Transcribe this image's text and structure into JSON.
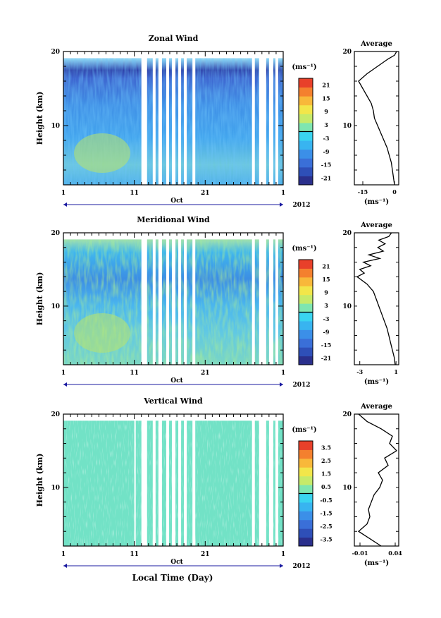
{
  "figure": {
    "bottom_xlabel": "Local Time (Day)"
  },
  "colormap": [
    "#2a2f8c",
    "#2e4fb8",
    "#3a6fd8",
    "#3b8fe8",
    "#38b4f0",
    "#3ad4f0",
    "#7ee6b0",
    "#c6ea6a",
    "#f2e64a",
    "#f8b83a",
    "#f4802e",
    "#e8402a"
  ],
  "chart_data": [
    {
      "type": "heatmap",
      "title": "Zonal Wind",
      "ylabel": "Height (km)",
      "yticks": [
        "10",
        "20"
      ],
      "ylim": [
        2,
        20
      ],
      "xticks": [
        "1",
        "11",
        "21",
        "1"
      ],
      "xlim": [
        1,
        32
      ],
      "month_label": "Oct",
      "year_label": "2012",
      "colorbar": {
        "unit": "(ms⁻¹)",
        "ticks": [
          "21",
          "15",
          "9",
          "3",
          "-3",
          "-9",
          "-15",
          "-21"
        ],
        "range": [
          -24,
          24
        ]
      },
      "data_gaps_days": [
        [
          12.0,
          12.8
        ],
        [
          13.6,
          14.0
        ],
        [
          14.4,
          14.9
        ],
        [
          15.5,
          15.9
        ],
        [
          16.3,
          16.8
        ],
        [
          17.2,
          17.6
        ],
        [
          18.0,
          18.4
        ],
        [
          19.2,
          19.6
        ],
        [
          27.6,
          28.0
        ],
        [
          28.6,
          29.6
        ],
        [
          30.0,
          30.6
        ],
        [
          30.9,
          31.3
        ]
      ],
      "average_profile": {
        "title": "Average",
        "xticks": [
          "-15",
          "0"
        ],
        "xlim": [
          -19,
          2
        ],
        "xunit": "(ms⁻¹)",
        "yticks": [
          "10",
          "20"
        ],
        "height_km": [
          2,
          3,
          4,
          5,
          6,
          7,
          8,
          9,
          10,
          11,
          12,
          13,
          14,
          15,
          16,
          17,
          18,
          19,
          19.5,
          20
        ],
        "speed": [
          0,
          -0.5,
          -1,
          -1.5,
          -2.5,
          -3.5,
          -5,
          -6.5,
          -8,
          -9.5,
          -10,
          -11,
          -13,
          -15,
          -17,
          -13,
          -8,
          -3,
          0,
          1
        ]
      }
    },
    {
      "type": "heatmap",
      "title": "Meridional Wind",
      "ylabel": "Height (km)",
      "yticks": [
        "10",
        "20"
      ],
      "ylim": [
        2,
        20
      ],
      "xticks": [
        "1",
        "11",
        "21",
        "1"
      ],
      "xlim": [
        1,
        32
      ],
      "month_label": "Oct",
      "year_label": "2012",
      "colorbar": {
        "unit": "(ms⁻¹)",
        "ticks": [
          "21",
          "15",
          "9",
          "3",
          "-3",
          "-9",
          "-15",
          "-21"
        ],
        "range": [
          -24,
          24
        ]
      },
      "data_gaps_days": [
        [
          12.0,
          12.8
        ],
        [
          13.6,
          14.0
        ],
        [
          14.4,
          14.9
        ],
        [
          15.5,
          15.9
        ],
        [
          16.3,
          16.8
        ],
        [
          17.2,
          17.6
        ],
        [
          18.0,
          18.4
        ],
        [
          19.2,
          19.6
        ],
        [
          27.6,
          28.0
        ],
        [
          28.6,
          29.6
        ],
        [
          30.0,
          30.6
        ],
        [
          30.9,
          31.3
        ]
      ],
      "average_profile": {
        "title": "Average",
        "xticks": [
          "-3",
          "1"
        ],
        "xlim": [
          -3.6,
          1.3
        ],
        "xunit": "(ms⁻¹)",
        "yticks": [
          "10",
          "20"
        ],
        "height_km": [
          2,
          3,
          4,
          5,
          6,
          7,
          8,
          9,
          10,
          11,
          12,
          13,
          14,
          14.5,
          15,
          15.5,
          16,
          16.5,
          17,
          17.5,
          18,
          18.5,
          19,
          19.5,
          20
        ],
        "speed": [
          0.9,
          0.8,
          0.6,
          0.4,
          0.2,
          0,
          -0.3,
          -0.6,
          -0.9,
          -1.2,
          -1.5,
          -2.2,
          -3.3,
          -2.5,
          -3.0,
          -1.8,
          -2.6,
          -0.8,
          -2.0,
          -0.4,
          -1.0,
          -0.2,
          -0.9,
          0.2,
          0.5
        ]
      }
    },
    {
      "type": "heatmap",
      "title": "Vertical Wind",
      "ylabel": "Height (km)",
      "yticks": [
        "10",
        "20"
      ],
      "ylim": [
        2,
        20
      ],
      "xticks": [
        "1",
        "11",
        "21",
        "1"
      ],
      "xlim": [
        1,
        32
      ],
      "month_label": "Oct",
      "year_label": "2012",
      "colorbar": {
        "unit": "(ms⁻¹)",
        "ticks": [
          "3.5",
          "2.5",
          "1.5",
          "0.5",
          "-0.5",
          "-1.5",
          "-2.5",
          "-3.5"
        ],
        "range": [
          -4,
          4
        ]
      },
      "data_gaps_days": [
        [
          11.0,
          11.2
        ],
        [
          12.0,
          12.8
        ],
        [
          13.6,
          14.0
        ],
        [
          14.4,
          14.9
        ],
        [
          15.5,
          15.9
        ],
        [
          16.3,
          16.8
        ],
        [
          17.2,
          17.6
        ],
        [
          18.0,
          18.4
        ],
        [
          19.2,
          19.6
        ],
        [
          27.6,
          28.0
        ],
        [
          28.6,
          29.6
        ],
        [
          30.0,
          30.6
        ],
        [
          30.9,
          31.3
        ]
      ],
      "average_profile": {
        "title": "Average",
        "xticks": [
          "-0.01",
          "0.04"
        ],
        "xlim": [
          -0.018,
          0.045
        ],
        "xunit": "(ms⁻¹)",
        "yticks": [
          "10",
          "20"
        ],
        "height_km": [
          2,
          3,
          4,
          5,
          6,
          7,
          8,
          9,
          10,
          11,
          12,
          13,
          14,
          15,
          16,
          17,
          18,
          19,
          20
        ],
        "speed": [
          0.02,
          0.004,
          -0.012,
          0.0,
          0.004,
          0.002,
          0.006,
          0.01,
          0.018,
          0.022,
          0.016,
          0.03,
          0.025,
          0.042,
          0.032,
          0.036,
          0.02,
          0.0,
          -0.012
        ]
      }
    }
  ]
}
